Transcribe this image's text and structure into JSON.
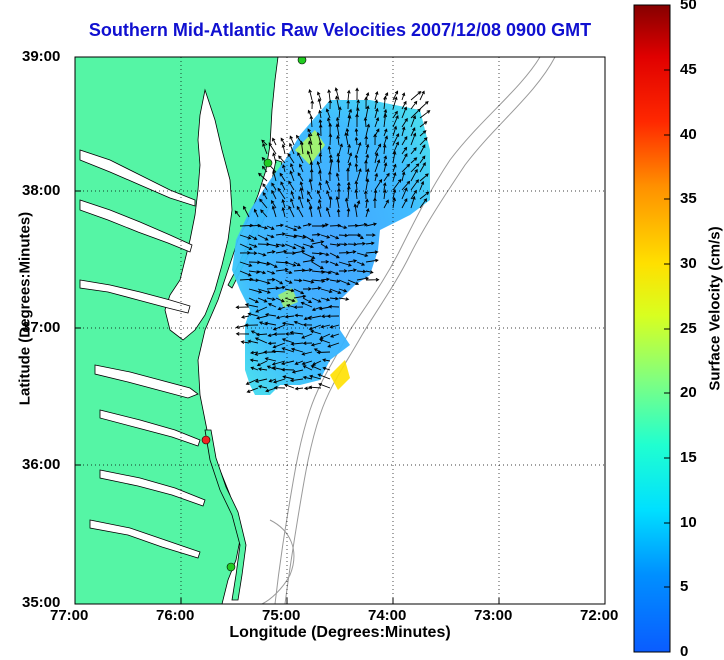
{
  "title": "Southern Mid-Atlantic Raw Velocities 2007/12/08 0900 GMT",
  "x_axis": {
    "label": "Longitude (Degrees:Minutes)",
    "ticks": [
      "77:00",
      "76:00",
      "75:00",
      "74:00",
      "73:00",
      "72:00"
    ]
  },
  "y_axis": {
    "label": "Latitude (Degrees:Minutes)",
    "ticks": [
      "39:00",
      "38:00",
      "37:00",
      "36:00",
      "35:00"
    ]
  },
  "colorbar": {
    "label": "Surface Velocity (cm/s)",
    "ticks": [
      "50",
      "45",
      "40",
      "35",
      "30",
      "25",
      "20",
      "15",
      "10",
      "5",
      "0"
    ],
    "range": [
      0,
      50
    ],
    "colormap": "jet"
  },
  "colors": {
    "title": "#1010d0",
    "land": "#55f5a5",
    "coast": "#000000",
    "bathymetry": "#9a9a9a",
    "gridline": "#000000"
  },
  "map": {
    "lon_range": [
      -77,
      -72
    ],
    "lat_range": [
      35,
      39
    ],
    "grid": "dotted",
    "station_markers": [
      {
        "name": "north-station",
        "color": "#22cc22"
      },
      {
        "name": "mid-station",
        "color": "#22cc22"
      },
      {
        "name": "south-station",
        "color": "#ee2222"
      },
      {
        "name": "hatteras-station",
        "color": "#22cc22"
      }
    ],
    "vector_field": "surface current arrows over velocity color field"
  }
}
